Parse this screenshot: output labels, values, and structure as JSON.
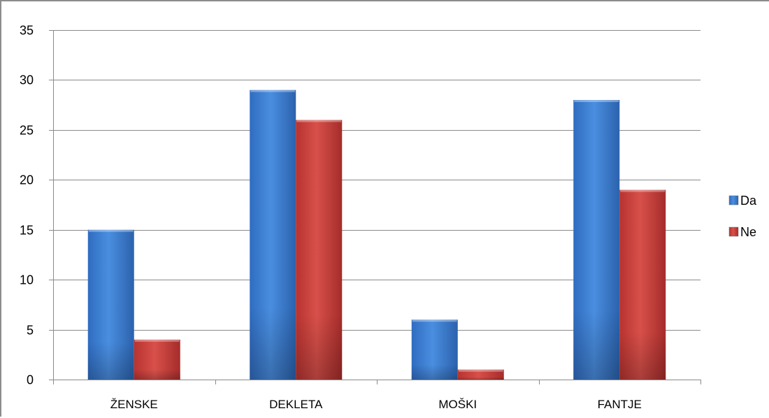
{
  "chart_data": {
    "type": "bar",
    "categories": [
      "ŽENSKE",
      "DEKLETA",
      "MOŠKI",
      "FANTJE"
    ],
    "series": [
      {
        "name": "Da",
        "values": [
          15,
          29,
          6,
          28
        ],
        "color": "#3c7ccf"
      },
      {
        "name": "Ne",
        "values": [
          4,
          26,
          1,
          19
        ],
        "color": "#c63a37"
      }
    ],
    "ylim": [
      0,
      35
    ],
    "yticks": [
      0,
      5,
      10,
      15,
      20,
      25,
      30,
      35
    ],
    "grid": true,
    "legend_position": "right",
    "title": "",
    "xlabel": "",
    "ylabel": ""
  }
}
